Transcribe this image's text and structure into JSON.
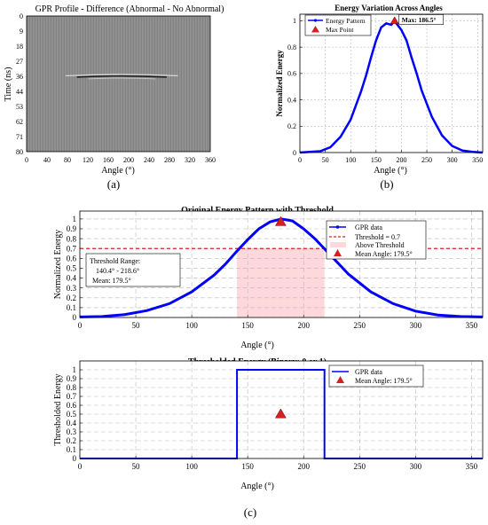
{
  "chart_data": [
    {
      "id": "a",
      "type": "heatmap",
      "title": "GPR Profile - Difference (Abnormal - No Abnormal)",
      "xlabel": "Angle (°)",
      "ylabel": "Time (ns)",
      "xticks": [
        "0",
        "40",
        "80",
        "120",
        "160",
        "200",
        "240",
        "280",
        "320",
        "360"
      ],
      "yticks": [
        "0",
        "9",
        "18",
        "27",
        "36",
        "44",
        "53",
        "62",
        "71",
        "80"
      ],
      "xlim": [
        0,
        360
      ],
      "ylim": [
        0,
        80
      ],
      "anomaly": {
        "angle_center": 186.5,
        "angle_halfwidth": 110,
        "time": 35
      },
      "panel_label": "(a)"
    },
    {
      "id": "b",
      "type": "line",
      "title": "Energy Variation Across Angles",
      "xlabel": "Angle (°)",
      "ylabel": "Normalized Energy",
      "xticks": [
        0,
        50,
        100,
        150,
        200,
        250,
        300,
        350
      ],
      "yticks": [
        0,
        0.2,
        0.4,
        0.6,
        0.8,
        1
      ],
      "xlim": [
        0,
        360
      ],
      "ylim": [
        0,
        1.05
      ],
      "grid": true,
      "legend_position": "top-left",
      "series": [
        {
          "name": "Energy Pattern",
          "color": "#0000ff",
          "x": [
            0,
            20,
            40,
            60,
            80,
            100,
            120,
            130,
            140,
            150,
            160,
            170,
            180,
            186.5,
            190,
            200,
            210,
            220,
            230,
            240,
            260,
            280,
            300,
            320,
            340,
            360
          ],
          "y": [
            0,
            0.005,
            0.01,
            0.04,
            0.12,
            0.25,
            0.46,
            0.58,
            0.72,
            0.85,
            0.95,
            0.98,
            0.97,
            1.0,
            0.98,
            0.93,
            0.85,
            0.72,
            0.6,
            0.47,
            0.27,
            0.13,
            0.05,
            0.015,
            0.005,
            0
          ]
        }
      ],
      "max_point": {
        "name": "Max Point",
        "x": 186.5,
        "y": 1.0,
        "label": "Max: 186.5°",
        "color": "#d62020"
      },
      "panel_label": "(b)"
    },
    {
      "id": "c1",
      "type": "line",
      "title": "Original Energy Pattern with Threshold",
      "xlabel": "Angle (°)",
      "ylabel": "Normalized Energy",
      "xticks": [
        0,
        50,
        100,
        150,
        200,
        250,
        300,
        350
      ],
      "yticks": [
        0,
        0.1,
        0.2,
        0.3,
        0.4,
        0.5,
        0.6,
        0.7,
        0.8,
        0.9,
        1
      ],
      "xlim": [
        0,
        360
      ],
      "ylim": [
        0,
        1.08
      ],
      "grid": true,
      "legend_position": "top-right",
      "series": [
        {
          "name": "GPR data",
          "color": "#0000ff",
          "x": [
            0,
            20,
            40,
            60,
            80,
            100,
            120,
            130,
            140,
            150,
            160,
            170,
            180,
            190,
            200,
            210,
            220,
            230,
            240,
            260,
            280,
            300,
            320,
            340,
            360
          ],
          "y": [
            0.005,
            0.01,
            0.03,
            0.07,
            0.14,
            0.26,
            0.43,
            0.54,
            0.67,
            0.79,
            0.9,
            0.97,
            1.0,
            0.98,
            0.9,
            0.8,
            0.68,
            0.56,
            0.44,
            0.26,
            0.14,
            0.065,
            0.025,
            0.01,
            0.005
          ]
        }
      ],
      "threshold": {
        "name": "Threshold = 0.7",
        "value": 0.7,
        "color": "#d62020"
      },
      "shade": {
        "name": "Above Threshold",
        "from": 140.4,
        "to": 218.6,
        "color": "#ffd8dc"
      },
      "mean_marker": {
        "name": "Mean Angle: 179.5°",
        "x": 179.5,
        "y": 0.97,
        "color": "#d62020"
      },
      "annotation": [
        "Threshold Range:",
        "140.4° - 218.6°",
        "Mean: 179.5°"
      ]
    },
    {
      "id": "c2",
      "type": "line",
      "title": "Thresholded Energy (Binary: 0 or 1)",
      "xlabel": "Angle (°)",
      "ylabel": "Thresholded Energy",
      "xticks": [
        0,
        50,
        100,
        150,
        200,
        250,
        300,
        350
      ],
      "yticks": [
        0,
        0.1,
        0.2,
        0.3,
        0.4,
        0.5,
        0.6,
        0.7,
        0.8,
        0.9,
        1
      ],
      "xlim": [
        0,
        360
      ],
      "ylim": [
        0,
        1.1
      ],
      "grid": true,
      "legend_position": "top-right",
      "series": [
        {
          "name": "GPR data",
          "color": "#0000ff",
          "x": [
            0,
            140.4,
            140.4,
            218.6,
            218.6,
            360
          ],
          "y": [
            0,
            0,
            1,
            1,
            0,
            0
          ]
        }
      ],
      "mean_marker": {
        "name": "Mean Angle: 179.5°",
        "x": 179.5,
        "y": 0.5,
        "color": "#d62020"
      },
      "panel_label": "(c)"
    }
  ]
}
